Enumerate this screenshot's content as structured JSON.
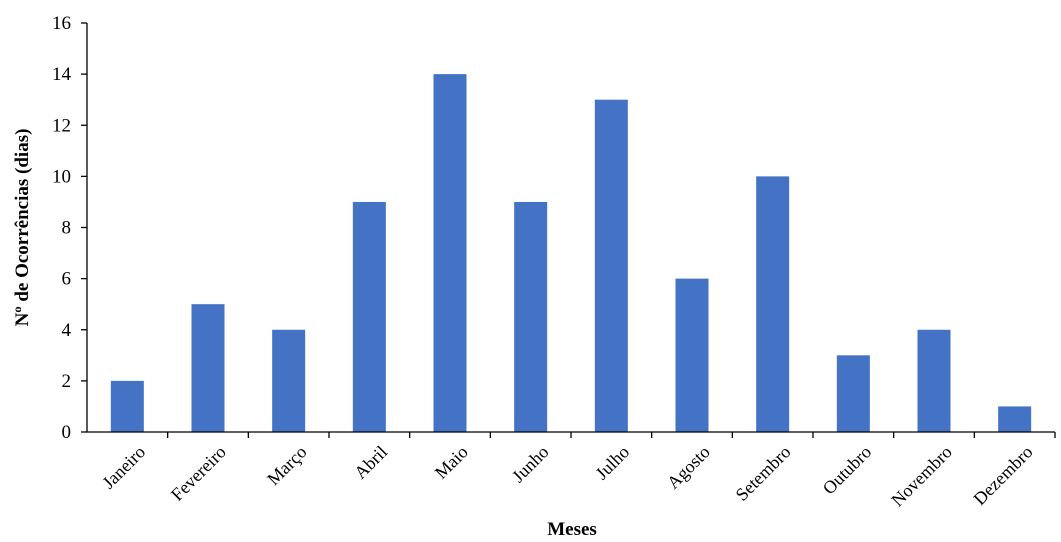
{
  "chart_data": {
    "type": "bar",
    "categories": [
      "Janeiro",
      "Fevereiro",
      "Março",
      "Abril",
      "Maio",
      "Junho",
      "Julho",
      "Agosto",
      "Setembro",
      "Outubro",
      "Novembro",
      "Dezembro"
    ],
    "values": [
      2,
      5,
      4,
      9,
      14,
      9,
      13,
      6,
      10,
      3,
      4,
      1
    ],
    "xlabel": "Meses",
    "ylabel": "Nº de Ocorrências (dias)",
    "ylim": [
      0,
      16
    ],
    "yticks": [
      0,
      2,
      4,
      6,
      8,
      10,
      12,
      14,
      16
    ],
    "grid": false,
    "legend": "none",
    "bar_color": "#4472C4"
  }
}
